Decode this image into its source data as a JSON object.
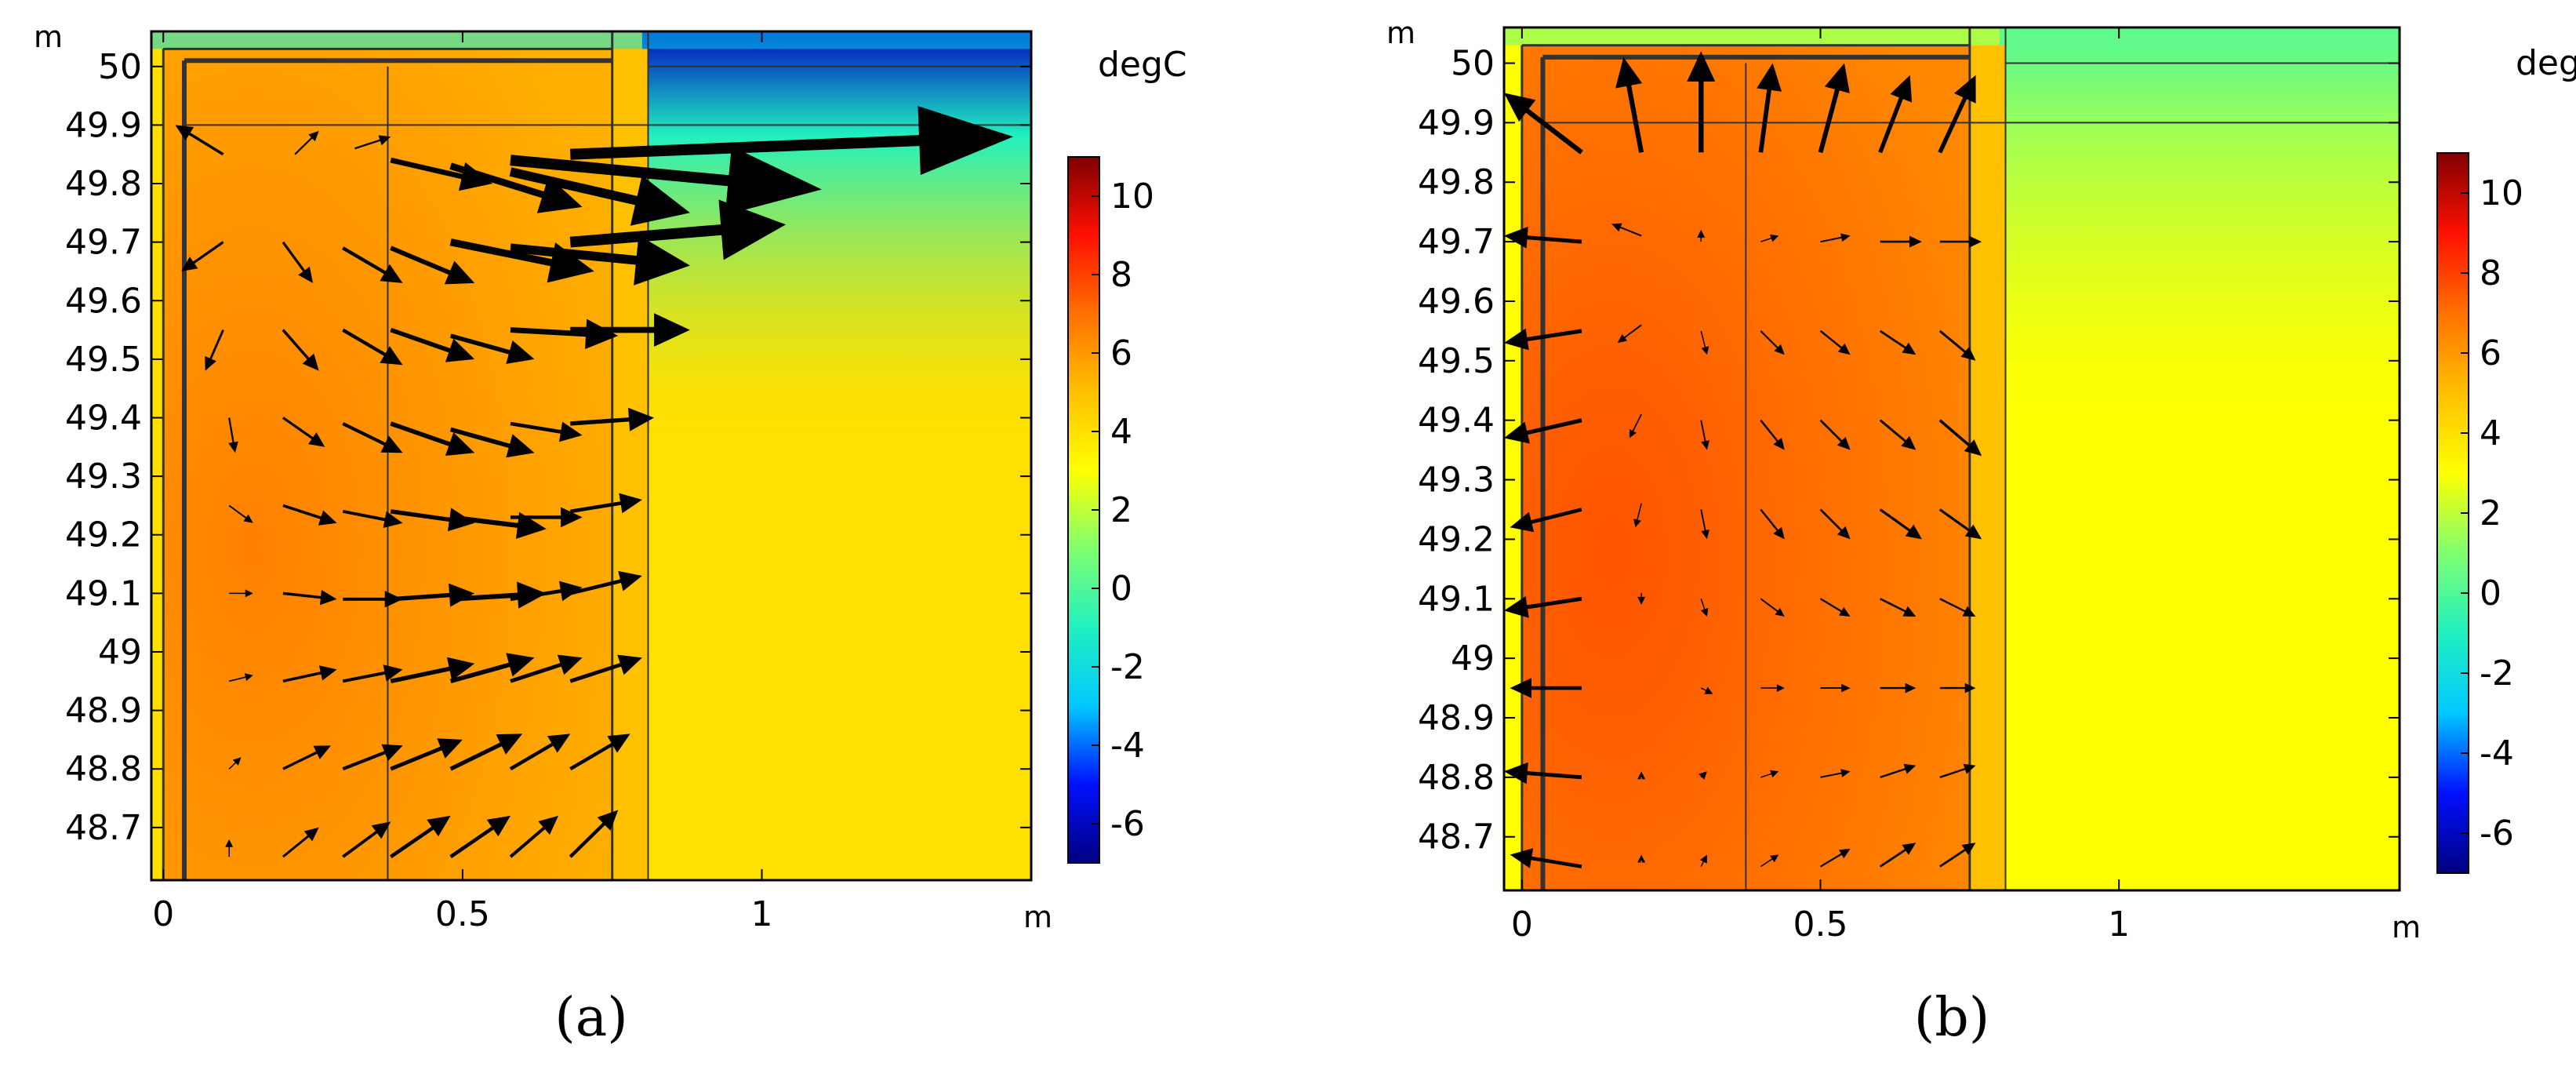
{
  "colorbar_colors": [
    "#00007f",
    "#0010ff",
    "#00c8ff",
    "#20f0c0",
    "#7fff70",
    "#ffff00",
    "#ffc000",
    "#ff7000",
    "#ff1000",
    "#7f0000"
  ],
  "geometry_line_color": "#333333",
  "arrow_color": "#000000",
  "chart_data": [
    {
      "type": "heatmap",
      "panel_label": "(a)",
      "x_unit": "m",
      "y_unit": "m",
      "xlim": [
        -0.02,
        1.45
      ],
      "ylim": [
        48.61,
        50.06
      ],
      "x_ticks": [
        "0",
        "0.5",
        "1"
      ],
      "y_ticks": [
        "48.7",
        "48.8",
        "48.9",
        "49",
        "49.1",
        "49.2",
        "49.3",
        "49.4",
        "49.5",
        "49.6",
        "49.7",
        "49.8",
        "49.9",
        "50"
      ],
      "colorbar_label": "degC",
      "colorbar_ticks": [
        "-6",
        "-4",
        "-2",
        "0",
        "2",
        "4",
        "6",
        "8",
        "10"
      ],
      "colorbar_range": [
        -7,
        11
      ],
      "field_description": "temperature with heat-flux arrows",
      "interior_temperature": 6,
      "outer_soil_temperature": 4,
      "air_temperature": -6,
      "arrows": [
        {
          "x": 0.1,
          "y": 49.85,
          "dx": -0.08,
          "dy": 0.05
        },
        {
          "x": 0.22,
          "y": 49.85,
          "dx": 0.04,
          "dy": 0.04
        },
        {
          "x": 0.32,
          "y": 49.86,
          "dx": 0.06,
          "dy": 0.02
        },
        {
          "x": 0.38,
          "y": 49.84,
          "dx": 0.17,
          "dy": -0.04
        },
        {
          "x": 0.48,
          "y": 49.83,
          "dx": 0.22,
          "dy": -0.07
        },
        {
          "x": 0.58,
          "y": 49.82,
          "dx": 0.3,
          "dy": -0.07
        },
        {
          "x": 0.58,
          "y": 49.84,
          "dx": 0.52,
          "dy": -0.05
        },
        {
          "x": 0.68,
          "y": 49.85,
          "dx": 0.74,
          "dy": 0.03
        },
        {
          "x": 0.1,
          "y": 49.7,
          "dx": -0.07,
          "dy": -0.05
        },
        {
          "x": 0.2,
          "y": 49.7,
          "dx": 0.05,
          "dy": -0.07
        },
        {
          "x": 0.3,
          "y": 49.69,
          "dx": 0.1,
          "dy": -0.06
        },
        {
          "x": 0.38,
          "y": 49.69,
          "dx": 0.14,
          "dy": -0.06
        },
        {
          "x": 0.48,
          "y": 49.7,
          "dx": 0.24,
          "dy": -0.05
        },
        {
          "x": 0.58,
          "y": 49.69,
          "dx": 0.3,
          "dy": -0.03
        },
        {
          "x": 0.68,
          "y": 49.7,
          "dx": 0.36,
          "dy": 0.03
        },
        {
          "x": 0.1,
          "y": 49.55,
          "dx": -0.03,
          "dy": -0.07
        },
        {
          "x": 0.2,
          "y": 49.55,
          "dx": 0.06,
          "dy": -0.07
        },
        {
          "x": 0.3,
          "y": 49.55,
          "dx": 0.1,
          "dy": -0.06
        },
        {
          "x": 0.38,
          "y": 49.55,
          "dx": 0.14,
          "dy": -0.05
        },
        {
          "x": 0.48,
          "y": 49.54,
          "dx": 0.14,
          "dy": -0.04
        },
        {
          "x": 0.58,
          "y": 49.55,
          "dx": 0.18,
          "dy": -0.01
        },
        {
          "x": 0.68,
          "y": 49.55,
          "dx": 0.2,
          "dy": 0.0
        },
        {
          "x": 0.11,
          "y": 49.4,
          "dx": 0.01,
          "dy": -0.06
        },
        {
          "x": 0.2,
          "y": 49.4,
          "dx": 0.07,
          "dy": -0.05
        },
        {
          "x": 0.3,
          "y": 49.39,
          "dx": 0.1,
          "dy": -0.05
        },
        {
          "x": 0.38,
          "y": 49.39,
          "dx": 0.14,
          "dy": -0.05
        },
        {
          "x": 0.48,
          "y": 49.38,
          "dx": 0.14,
          "dy": -0.04
        },
        {
          "x": 0.58,
          "y": 49.39,
          "dx": 0.12,
          "dy": -0.02
        },
        {
          "x": 0.68,
          "y": 49.39,
          "dx": 0.14,
          "dy": 0.01
        },
        {
          "x": 0.11,
          "y": 49.25,
          "dx": 0.04,
          "dy": -0.03
        },
        {
          "x": 0.2,
          "y": 49.25,
          "dx": 0.09,
          "dy": -0.03
        },
        {
          "x": 0.3,
          "y": 49.24,
          "dx": 0.1,
          "dy": -0.02
        },
        {
          "x": 0.38,
          "y": 49.24,
          "dx": 0.14,
          "dy": -0.02
        },
        {
          "x": 0.48,
          "y": 49.23,
          "dx": 0.16,
          "dy": -0.02
        },
        {
          "x": 0.58,
          "y": 49.23,
          "dx": 0.12,
          "dy": 0.0
        },
        {
          "x": 0.68,
          "y": 49.24,
          "dx": 0.12,
          "dy": 0.02
        },
        {
          "x": 0.11,
          "y": 49.1,
          "dx": 0.04,
          "dy": 0.0
        },
        {
          "x": 0.2,
          "y": 49.1,
          "dx": 0.09,
          "dy": -0.01
        },
        {
          "x": 0.3,
          "y": 49.09,
          "dx": 0.1,
          "dy": 0.0
        },
        {
          "x": 0.38,
          "y": 49.09,
          "dx": 0.14,
          "dy": 0.01
        },
        {
          "x": 0.48,
          "y": 49.09,
          "dx": 0.16,
          "dy": 0.01
        },
        {
          "x": 0.58,
          "y": 49.09,
          "dx": 0.12,
          "dy": 0.02
        },
        {
          "x": 0.68,
          "y": 49.1,
          "dx": 0.12,
          "dy": 0.03
        },
        {
          "x": 0.11,
          "y": 48.95,
          "dx": 0.04,
          "dy": 0.01
        },
        {
          "x": 0.2,
          "y": 48.95,
          "dx": 0.09,
          "dy": 0.02
        },
        {
          "x": 0.3,
          "y": 48.95,
          "dx": 0.1,
          "dy": 0.02
        },
        {
          "x": 0.38,
          "y": 48.95,
          "dx": 0.14,
          "dy": 0.03
        },
        {
          "x": 0.48,
          "y": 48.95,
          "dx": 0.14,
          "dy": 0.04
        },
        {
          "x": 0.58,
          "y": 48.95,
          "dx": 0.12,
          "dy": 0.04
        },
        {
          "x": 0.68,
          "y": 48.95,
          "dx": 0.12,
          "dy": 0.04
        },
        {
          "x": 0.11,
          "y": 48.8,
          "dx": 0.02,
          "dy": 0.02
        },
        {
          "x": 0.2,
          "y": 48.8,
          "dx": 0.08,
          "dy": 0.04
        },
        {
          "x": 0.3,
          "y": 48.8,
          "dx": 0.1,
          "dy": 0.04
        },
        {
          "x": 0.38,
          "y": 48.8,
          "dx": 0.12,
          "dy": 0.05
        },
        {
          "x": 0.48,
          "y": 48.8,
          "dx": 0.12,
          "dy": 0.06
        },
        {
          "x": 0.58,
          "y": 48.8,
          "dx": 0.1,
          "dy": 0.06
        },
        {
          "x": 0.68,
          "y": 48.8,
          "dx": 0.1,
          "dy": 0.06
        },
        {
          "x": 0.11,
          "y": 48.65,
          "dx": 0.0,
          "dy": 0.03
        },
        {
          "x": 0.2,
          "y": 48.65,
          "dx": 0.06,
          "dy": 0.05
        },
        {
          "x": 0.3,
          "y": 48.65,
          "dx": 0.08,
          "dy": 0.06
        },
        {
          "x": 0.38,
          "y": 48.65,
          "dx": 0.1,
          "dy": 0.07
        },
        {
          "x": 0.48,
          "y": 48.65,
          "dx": 0.1,
          "dy": 0.07
        },
        {
          "x": 0.58,
          "y": 48.65,
          "dx": 0.08,
          "dy": 0.07
        },
        {
          "x": 0.68,
          "y": 48.65,
          "dx": 0.08,
          "dy": 0.08
        }
      ]
    },
    {
      "type": "heatmap",
      "panel_label": "(b)",
      "x_unit": "m",
      "y_unit": "m",
      "xlim": [
        -0.03,
        1.47
      ],
      "ylim": [
        48.61,
        50.06
      ],
      "x_ticks": [
        "0",
        "0.5",
        "1"
      ],
      "y_ticks": [
        "48.7",
        "48.8",
        "48.9",
        "49",
        "49.1",
        "49.2",
        "49.3",
        "49.4",
        "49.5",
        "49.6",
        "49.7",
        "49.8",
        "49.9",
        "50"
      ],
      "colorbar_label": "degC",
      "colorbar_ticks": [
        "-6",
        "-4",
        "-2",
        "0",
        "2",
        "4",
        "6",
        "8",
        "10"
      ],
      "colorbar_range": [
        -7,
        11
      ],
      "field_description": "temperature with heat-flux arrows",
      "interior_temperature": 7,
      "outer_soil_temperature": 3,
      "air_temperature": 0,
      "arrows": [
        {
          "x": 0.1,
          "y": 49.85,
          "dx": -0.13,
          "dy": 0.1
        },
        {
          "x": 0.2,
          "y": 49.85,
          "dx": -0.03,
          "dy": 0.16
        },
        {
          "x": 0.3,
          "y": 49.85,
          "dx": 0.0,
          "dy": 0.17
        },
        {
          "x": 0.4,
          "y": 49.85,
          "dx": 0.02,
          "dy": 0.15
        },
        {
          "x": 0.5,
          "y": 49.85,
          "dx": 0.04,
          "dy": 0.15
        },
        {
          "x": 0.6,
          "y": 49.85,
          "dx": 0.05,
          "dy": 0.13
        },
        {
          "x": 0.7,
          "y": 49.85,
          "dx": 0.06,
          "dy": 0.13
        },
        {
          "x": 0.1,
          "y": 49.7,
          "dx": -0.13,
          "dy": 0.01
        },
        {
          "x": 0.2,
          "y": 49.71,
          "dx": -0.05,
          "dy": 0.02
        },
        {
          "x": 0.3,
          "y": 49.7,
          "dx": 0.0,
          "dy": 0.02
        },
        {
          "x": 0.4,
          "y": 49.7,
          "dx": 0.03,
          "dy": 0.01
        },
        {
          "x": 0.5,
          "y": 49.7,
          "dx": 0.05,
          "dy": 0.01
        },
        {
          "x": 0.6,
          "y": 49.7,
          "dx": 0.07,
          "dy": 0.0
        },
        {
          "x": 0.7,
          "y": 49.7,
          "dx": 0.07,
          "dy": 0.0
        },
        {
          "x": 0.1,
          "y": 49.55,
          "dx": -0.13,
          "dy": -0.02
        },
        {
          "x": 0.2,
          "y": 49.56,
          "dx": -0.04,
          "dy": -0.03
        },
        {
          "x": 0.3,
          "y": 49.55,
          "dx": 0.01,
          "dy": -0.04
        },
        {
          "x": 0.4,
          "y": 49.55,
          "dx": 0.04,
          "dy": -0.04
        },
        {
          "x": 0.5,
          "y": 49.55,
          "dx": 0.05,
          "dy": -0.04
        },
        {
          "x": 0.6,
          "y": 49.55,
          "dx": 0.06,
          "dy": -0.04
        },
        {
          "x": 0.7,
          "y": 49.55,
          "dx": 0.06,
          "dy": -0.05
        },
        {
          "x": 0.1,
          "y": 49.4,
          "dx": -0.13,
          "dy": -0.03
        },
        {
          "x": 0.2,
          "y": 49.41,
          "dx": -0.02,
          "dy": -0.04
        },
        {
          "x": 0.3,
          "y": 49.4,
          "dx": 0.01,
          "dy": -0.05
        },
        {
          "x": 0.4,
          "y": 49.4,
          "dx": 0.04,
          "dy": -0.05
        },
        {
          "x": 0.5,
          "y": 49.4,
          "dx": 0.05,
          "dy": -0.05
        },
        {
          "x": 0.6,
          "y": 49.4,
          "dx": 0.06,
          "dy": -0.05
        },
        {
          "x": 0.7,
          "y": 49.4,
          "dx": 0.07,
          "dy": -0.06
        },
        {
          "x": 0.1,
          "y": 49.25,
          "dx": -0.12,
          "dy": -0.03
        },
        {
          "x": 0.2,
          "y": 49.26,
          "dx": -0.01,
          "dy": -0.04
        },
        {
          "x": 0.3,
          "y": 49.25,
          "dx": 0.01,
          "dy": -0.05
        },
        {
          "x": 0.4,
          "y": 49.25,
          "dx": 0.04,
          "dy": -0.05
        },
        {
          "x": 0.5,
          "y": 49.25,
          "dx": 0.05,
          "dy": -0.05
        },
        {
          "x": 0.6,
          "y": 49.25,
          "dx": 0.07,
          "dy": -0.05
        },
        {
          "x": 0.7,
          "y": 49.25,
          "dx": 0.07,
          "dy": -0.05
        },
        {
          "x": 0.1,
          "y": 49.1,
          "dx": -0.13,
          "dy": -0.02
        },
        {
          "x": 0.2,
          "y": 49.11,
          "dx": 0.0,
          "dy": -0.02
        },
        {
          "x": 0.3,
          "y": 49.1,
          "dx": 0.01,
          "dy": -0.03
        },
        {
          "x": 0.4,
          "y": 49.1,
          "dx": 0.04,
          "dy": -0.03
        },
        {
          "x": 0.5,
          "y": 49.1,
          "dx": 0.05,
          "dy": -0.03
        },
        {
          "x": 0.6,
          "y": 49.1,
          "dx": 0.06,
          "dy": -0.03
        },
        {
          "x": 0.7,
          "y": 49.1,
          "dx": 0.06,
          "dy": -0.03
        },
        {
          "x": 0.1,
          "y": 48.95,
          "dx": -0.12,
          "dy": 0.0
        },
        {
          "x": 0.2,
          "y": 48.95,
          "dx": 0.0,
          "dy": 0.0
        },
        {
          "x": 0.3,
          "y": 48.95,
          "dx": 0.02,
          "dy": -0.01
        },
        {
          "x": 0.4,
          "y": 48.95,
          "dx": 0.04,
          "dy": 0.0
        },
        {
          "x": 0.5,
          "y": 48.95,
          "dx": 0.05,
          "dy": 0.0
        },
        {
          "x": 0.6,
          "y": 48.95,
          "dx": 0.06,
          "dy": 0.0
        },
        {
          "x": 0.7,
          "y": 48.95,
          "dx": 0.06,
          "dy": 0.0
        },
        {
          "x": 0.1,
          "y": 48.8,
          "dx": -0.13,
          "dy": 0.01
        },
        {
          "x": 0.2,
          "y": 48.8,
          "dx": 0.0,
          "dy": 0.01
        },
        {
          "x": 0.3,
          "y": 48.8,
          "dx": 0.01,
          "dy": 0.01
        },
        {
          "x": 0.4,
          "y": 48.8,
          "dx": 0.03,
          "dy": 0.01
        },
        {
          "x": 0.5,
          "y": 48.8,
          "dx": 0.05,
          "dy": 0.01
        },
        {
          "x": 0.6,
          "y": 48.8,
          "dx": 0.06,
          "dy": 0.02
        },
        {
          "x": 0.7,
          "y": 48.8,
          "dx": 0.06,
          "dy": 0.02
        },
        {
          "x": 0.1,
          "y": 48.65,
          "dx": -0.12,
          "dy": 0.02
        },
        {
          "x": 0.2,
          "y": 48.66,
          "dx": 0.0,
          "dy": 0.01
        },
        {
          "x": 0.3,
          "y": 48.65,
          "dx": 0.01,
          "dy": 0.02
        },
        {
          "x": 0.4,
          "y": 48.65,
          "dx": 0.03,
          "dy": 0.02
        },
        {
          "x": 0.5,
          "y": 48.65,
          "dx": 0.05,
          "dy": 0.03
        },
        {
          "x": 0.6,
          "y": 48.65,
          "dx": 0.06,
          "dy": 0.04
        },
        {
          "x": 0.7,
          "y": 48.65,
          "dx": 0.06,
          "dy": 0.04
        }
      ]
    }
  ]
}
